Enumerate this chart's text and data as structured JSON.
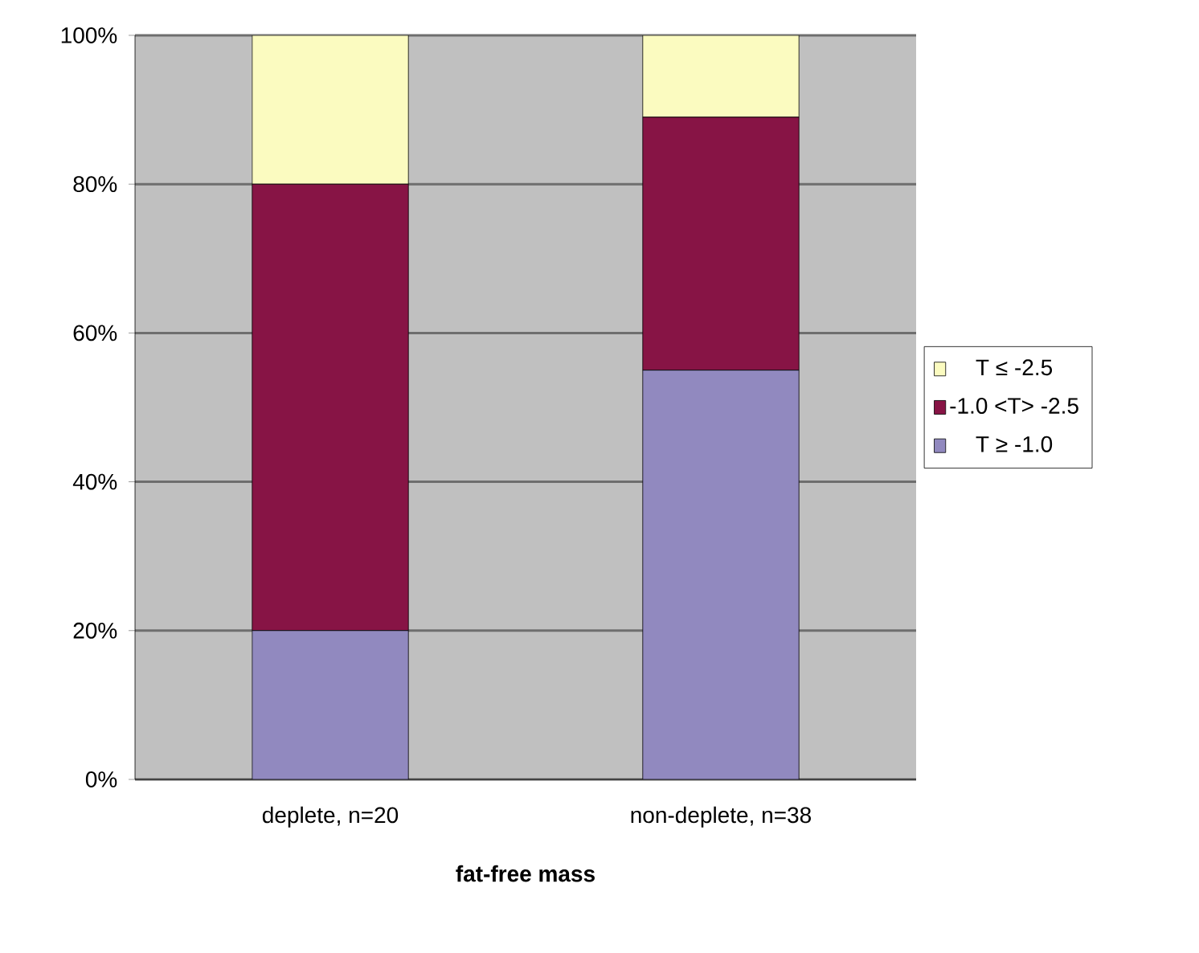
{
  "chart_data": {
    "type": "bar",
    "stacked": true,
    "xlabel": "**fat-free mass**",
    "categories": [
      "deplete, n=20",
      "non-deplete, n=38"
    ],
    "series": [
      {
        "name": "T ≥ -1.0",
        "color": "#9189bf",
        "values": [
          20,
          55
        ]
      },
      {
        "name": "-1.0 <T> -2.5",
        "color": "#871445",
        "values": [
          60,
          34
        ]
      },
      {
        "name": "T ≤ -2.5",
        "color": "#fbfbc0",
        "values": [
          20,
          11
        ]
      }
    ],
    "ylim": [
      0,
      100
    ],
    "yticks": [
      {
        "value": 0,
        "label": "0%"
      },
      {
        "value": 20,
        "label": "20%"
      },
      {
        "value": 40,
        "label": "40%"
      },
      {
        "value": 60,
        "label": "60%"
      },
      {
        "value": 80,
        "label": "80%"
      },
      {
        "value": 100,
        "label": "100%"
      }
    ],
    "grid": "y",
    "legend": "right"
  }
}
